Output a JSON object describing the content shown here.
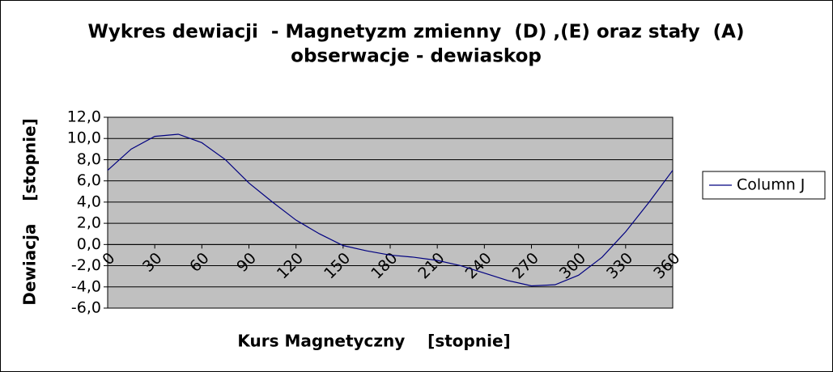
{
  "chart_data": {
    "type": "line",
    "title": "Wykres dewiacji  - Magnetyzm zmienny  (D) ,(E) oraz stały  (A)",
    "subtitle": "obserwacje - dewiaskop",
    "x_label": "Kurs Magnetyczny    [stopnie]",
    "y_label": "Dewiacja    [stopnie]",
    "x": [
      0,
      15,
      30,
      45,
      60,
      75,
      90,
      105,
      120,
      135,
      150,
      165,
      180,
      195,
      210,
      225,
      240,
      255,
      270,
      285,
      300,
      315,
      330,
      345,
      360
    ],
    "series": [
      {
        "name": "Column J",
        "color": "#000080",
        "values": [
          7.0,
          9.0,
          10.2,
          10.4,
          9.6,
          8.0,
          5.8,
          4.0,
          2.3,
          1.0,
          -0.1,
          -0.6,
          -1.0,
          -1.2,
          -1.5,
          -2.0,
          -2.7,
          -3.4,
          -3.9,
          -3.8,
          -2.9,
          -1.2,
          1.2,
          4.0,
          7.0
        ]
      }
    ],
    "xlim": [
      0,
      360
    ],
    "xticks": [
      0,
      30,
      60,
      90,
      120,
      150,
      180,
      210,
      240,
      270,
      300,
      330,
      360
    ],
    "ylim": [
      -6,
      12
    ],
    "yticks": [
      {
        "value": -6,
        "label": "-6,0"
      },
      {
        "value": -4,
        "label": "-4,0"
      },
      {
        "value": -2,
        "label": "-2,0"
      },
      {
        "value": 0,
        "label": "0,0"
      },
      {
        "value": 2,
        "label": "2,0"
      },
      {
        "value": 4,
        "label": "4,0"
      },
      {
        "value": 6,
        "label": "6,0"
      },
      {
        "value": 8,
        "label": "8,0"
      },
      {
        "value": 10,
        "label": "10,0"
      },
      {
        "value": 12,
        "label": "12,0"
      }
    ],
    "grid": true,
    "plot_background": "#c0c0c0",
    "legend": "right"
  }
}
